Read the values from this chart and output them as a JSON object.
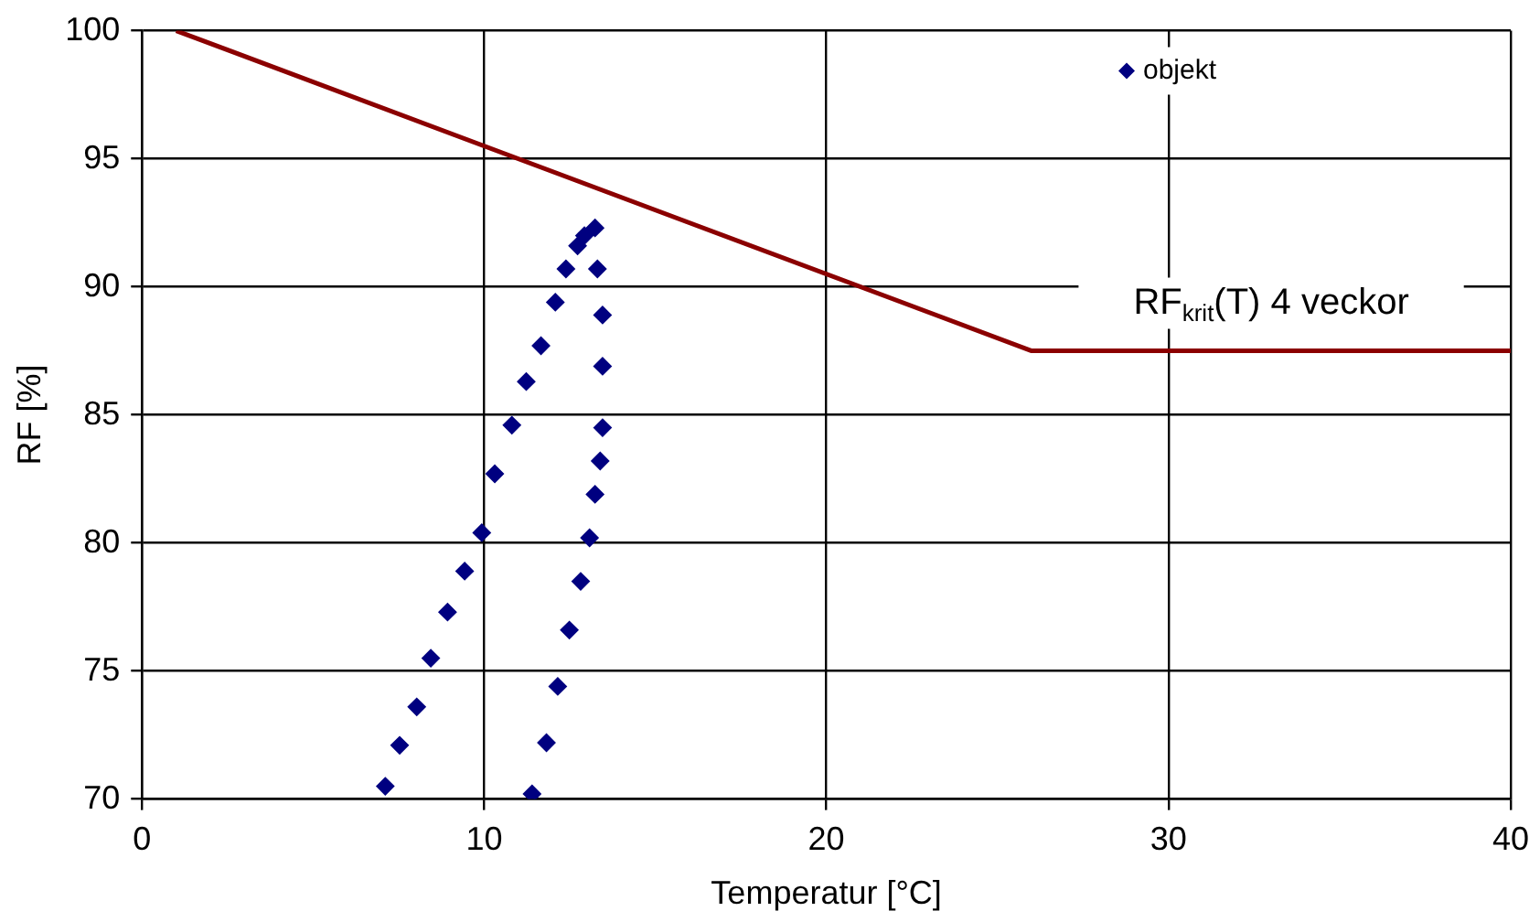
{
  "chart_data": {
    "type": "scatter",
    "xlabel": "Temperatur [°C]",
    "ylabel": "RF [%]",
    "xlim": [
      0,
      40
    ],
    "xticks": [
      0,
      10,
      20,
      30,
      40
    ],
    "ylim": [
      70,
      100
    ],
    "yticks": [
      70,
      75,
      80,
      85,
      90,
      95,
      100
    ],
    "grid": true,
    "legend": "top right",
    "series": [
      {
        "name": "objekt",
        "marker": "diamond",
        "color": "#000080",
        "x": [
          7.11,
          7.53,
          8.03,
          8.44,
          8.93,
          9.43,
          9.93,
          10.31,
          10.81,
          11.23,
          11.66,
          12.08,
          12.39,
          12.73,
          12.93,
          13.24,
          13.31,
          13.46,
          13.46,
          13.46,
          13.39,
          13.24,
          13.08,
          12.82,
          12.49,
          12.15,
          11.82,
          11.4
        ],
        "values": [
          70.5,
          72.1,
          73.6,
          75.5,
          77.3,
          78.9,
          80.4,
          82.7,
          84.6,
          86.3,
          87.7,
          89.4,
          90.7,
          91.6,
          92.0,
          92.3,
          90.7,
          88.9,
          86.9,
          84.5,
          83.2,
          81.9,
          80.2,
          78.5,
          76.6,
          74.4,
          72.2,
          70.2
        ]
      },
      {
        "name": "RF$_{krit}$(T) 4 veckor",
        "type": "line",
        "marker": "none",
        "color": "#8b0000",
        "x": [
          1,
          26,
          40
        ],
        "values": [
          100,
          87.5,
          87.5
        ]
      }
    ]
  }
}
